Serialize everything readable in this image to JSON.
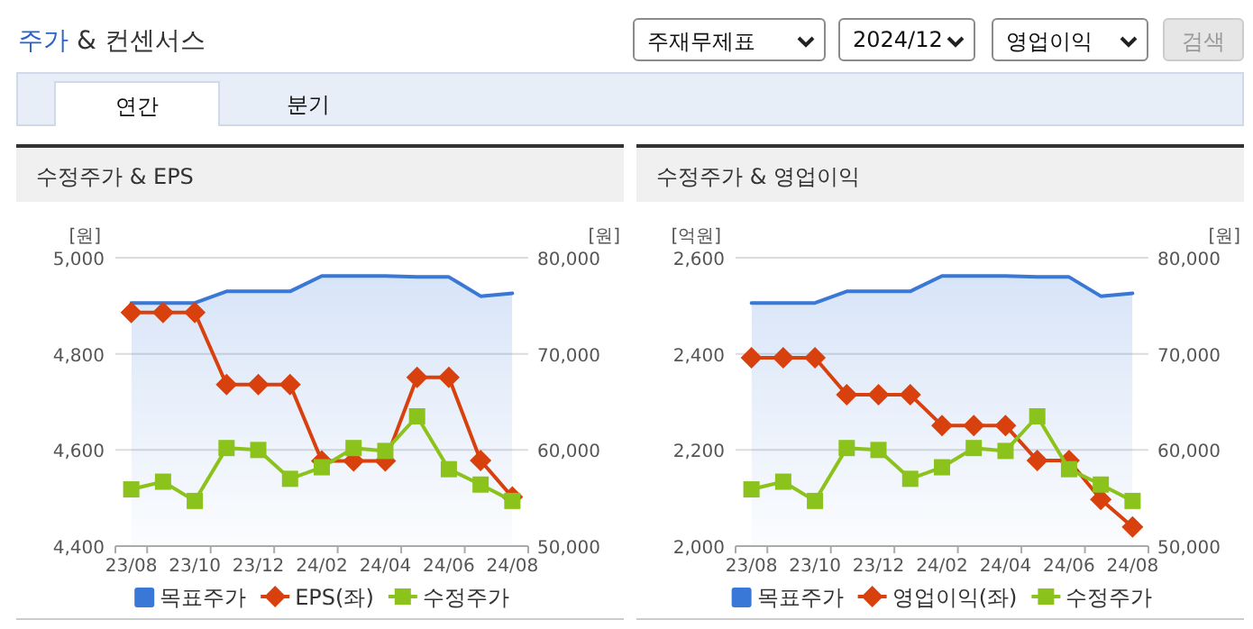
{
  "chart_data": [
    {
      "type": "other",
      "annotations": [
        "주가 & 컨센서스",
        "주재무제표",
        "2024/12",
        "영업이익",
        "검색",
        "연간",
        "분기"
      ]
    },
    {
      "type": "line",
      "title": "수정주가 & EPS",
      "ylabel": "[원]",
      "y2label": "[원]",
      "categories": [
        "23/08",
        null,
        "23/10",
        null,
        "23/12",
        null,
        "24/02",
        null,
        "24/04",
        null,
        "24/06",
        null,
        "24/08"
      ],
      "ylim": [
        4400,
        5000
      ],
      "yticks": [
        {
          "value": 4400,
          "label": "4,400"
        },
        {
          "value": 4600,
          "label": "4,600"
        },
        {
          "value": 4800,
          "label": "4,800"
        },
        {
          "value": 5000,
          "label": "5,000"
        }
      ],
      "y2lim": [
        50000,
        80000
      ],
      "y2ticks": [
        {
          "value": 50000,
          "label": "50,000"
        },
        {
          "value": 60000,
          "label": "60,000"
        },
        {
          "value": 70000,
          "label": "70,000"
        },
        {
          "value": 80000,
          "label": "80,000"
        }
      ],
      "grid": "y",
      "legend": "bottom",
      "series": [
        {
          "name": "목표주가",
          "type": "area",
          "axis": "y2",
          "color": "#3a78d8",
          "marker": "none",
          "values": [
            75300,
            75300,
            75300,
            76500,
            76500,
            76500,
            78100,
            78100,
            78100,
            78000,
            78000,
            76000,
            76300
          ]
        },
        {
          "name": "EPS(좌)",
          "type": "line",
          "color": "#d8400e",
          "marker": "diamond",
          "values": [
            4886,
            4886,
            4886,
            4736,
            4736,
            4736,
            4577,
            4577,
            4577,
            4751,
            4751,
            4578,
            4502
          ]
        },
        {
          "name": "수정주가",
          "type": "line",
          "axis": "y2",
          "color": "#8cc21c",
          "marker": "square",
          "values": [
            55900,
            56700,
            54700,
            60200,
            60000,
            57000,
            58200,
            60200,
            59900,
            63500,
            58000,
            56400,
            54700
          ]
        }
      ]
    },
    {
      "type": "line",
      "title": "수정주가 & 영업이익",
      "ylabel": "[억원]",
      "y2label": "[원]",
      "categories": [
        "23/08",
        null,
        "23/10",
        null,
        "23/12",
        null,
        "24/02",
        null,
        "24/04",
        null,
        "24/06",
        null,
        "24/08"
      ],
      "ylim": [
        2000,
        2600
      ],
      "yticks": [
        {
          "value": 2000,
          "label": "2,000"
        },
        {
          "value": 2200,
          "label": "2,200"
        },
        {
          "value": 2400,
          "label": "2,400"
        },
        {
          "value": 2600,
          "label": "2,600"
        }
      ],
      "y2lim": [
        50000,
        80000
      ],
      "y2ticks": [
        {
          "value": 50000,
          "label": "50,000"
        },
        {
          "value": 60000,
          "label": "60,000"
        },
        {
          "value": 70000,
          "label": "70,000"
        },
        {
          "value": 80000,
          "label": "80,000"
        }
      ],
      "grid": "y",
      "legend": "bottom",
      "series": [
        {
          "name": "목표주가",
          "type": "area",
          "axis": "y2",
          "color": "#3a78d8",
          "marker": "none",
          "values": [
            75300,
            75300,
            75300,
            76500,
            76500,
            76500,
            78100,
            78100,
            78100,
            78000,
            78000,
            76000,
            76300
          ]
        },
        {
          "name": "영업이익(좌)",
          "type": "line",
          "color": "#d8400e",
          "marker": "diamond",
          "values": [
            2392,
            2392,
            2392,
            2315,
            2315,
            2315,
            2251,
            2251,
            2251,
            2178,
            2178,
            2097,
            2040
          ]
        },
        {
          "name": "수정주가",
          "type": "line",
          "axis": "y2",
          "color": "#8cc21c",
          "marker": "square",
          "values": [
            55900,
            56700,
            54700,
            60200,
            60000,
            57000,
            58200,
            60200,
            59900,
            63500,
            58000,
            56400,
            54700
          ]
        }
      ]
    }
  ]
}
